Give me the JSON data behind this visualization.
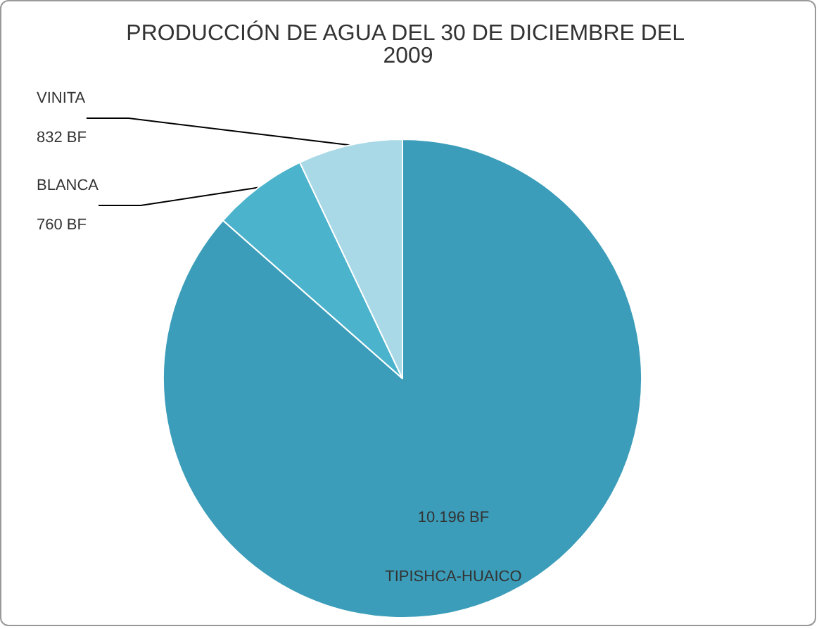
{
  "chart_data": {
    "type": "pie",
    "title": "PRODUCCIÓN DE AGUA DEL 30 DE DICIEMBRE DEL 2009",
    "categories": [
      "TIPISHCA-HUAICO",
      "BLANCA",
      "VINITA"
    ],
    "values": [
      10196,
      760,
      832
    ],
    "value_labels": [
      "10.196 BF",
      "760 BF",
      "832 BF"
    ],
    "colors": [
      "#3b9db9",
      "#4cb3cd",
      "#a9d9e7"
    ]
  }
}
